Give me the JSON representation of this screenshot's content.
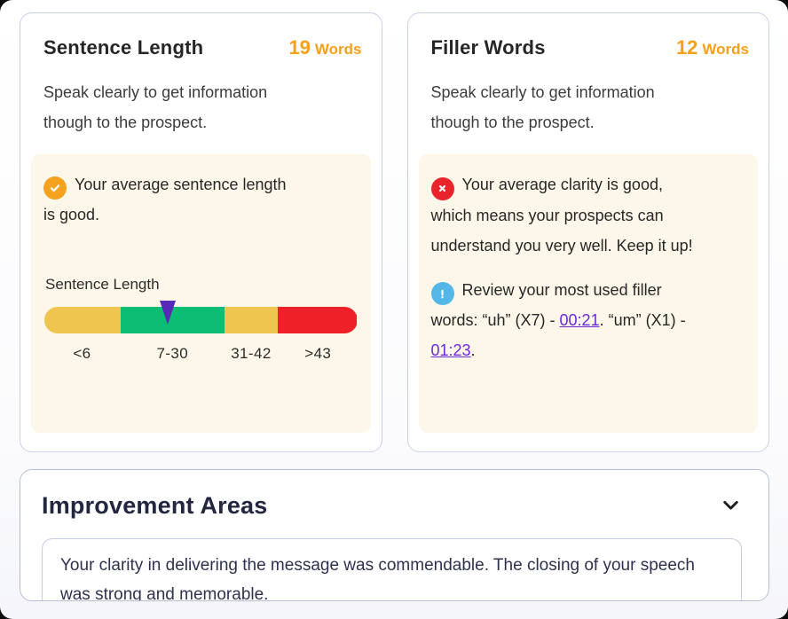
{
  "cards": [
    {
      "title": "Sentence Length",
      "metric_value": "19",
      "metric_unit": "Words",
      "description": "Speak clearly to get information though to the prospect.",
      "status": {
        "icon": "check-icon",
        "text": "Your average sentence length is good."
      },
      "gauge": {
        "label": "Sentence Length",
        "segments": [
          {
            "label": "<6",
            "color": "#efc54f",
            "width_pct": 24.5
          },
          {
            "label": "7-30",
            "color": "#0bbe71",
            "width_pct": 33
          },
          {
            "label": "31-42",
            "color": "#efc54f",
            "width_pct": 17
          },
          {
            "label": ">43",
            "color": "#ee2129",
            "width_pct": 25.5
          }
        ],
        "marker": {
          "color": "#5629b8",
          "position_pct": 39.5,
          "value": 19
        }
      }
    },
    {
      "title": "Filler Words",
      "metric_value": "12",
      "metric_unit": "Words",
      "description": "Speak clearly to get information though to the prospect.",
      "status": {
        "icon": "error-icon",
        "text": "Your average clarity is good, which means your prospects can understand you very well. Keep it up!"
      },
      "info": {
        "icon": "info-icon",
        "prefix": "Review your most used filler words: “uh” (X7) - ",
        "link1": "00:21",
        "middle": ". “um” (X1) - ",
        "link2": "01:23",
        "suffix": "."
      }
    }
  ],
  "improvement": {
    "title": "Improvement Areas",
    "chevron": "chevron-down-icon",
    "body": "Your clarity in delivering the message was commendable. The closing  of your speech was strong and memorable."
  },
  "colors": {
    "accent_orange": "#f9a01b",
    "check_icon": "#f5a21e",
    "error_icon": "#e9232b",
    "info_icon": "#55b7e8",
    "link_purple": "#6d28d9",
    "gauge_marker": "#5629b8",
    "panel_cream": "#fdf7ea",
    "card_border": "#cbd1ec",
    "heading_navy": "#23263f"
  }
}
